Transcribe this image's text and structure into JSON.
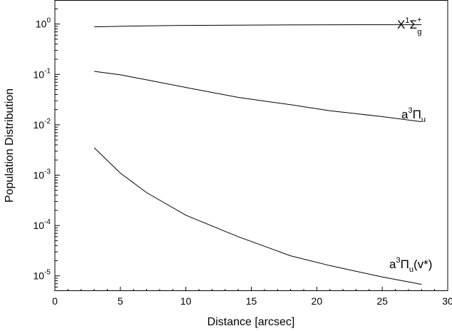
{
  "chart_data": {
    "type": "line",
    "xlabel": "Distance [arcsec]",
    "ylabel": "Population Distribution",
    "xlim": [
      0,
      30
    ],
    "ylim": [
      5e-06,
      3.0
    ],
    "yscale": "log",
    "grid": false,
    "x_ticks": [
      {
        "value": 0,
        "label": "0"
      },
      {
        "value": 5,
        "label": "5"
      },
      {
        "value": 10,
        "label": "10"
      },
      {
        "value": 15,
        "label": "15"
      },
      {
        "value": 20,
        "label": "20"
      },
      {
        "value": 25,
        "label": "25"
      },
      {
        "value": 30,
        "label": "30"
      }
    ],
    "y_ticks": [
      {
        "value": 1.0,
        "mant": "10",
        "exp": "0"
      },
      {
        "value": 0.1,
        "mant": "10",
        "exp": "-1"
      },
      {
        "value": 0.01,
        "mant": "10",
        "exp": "-2"
      },
      {
        "value": 0.001,
        "mant": "10",
        "exp": "-3"
      },
      {
        "value": 0.0001,
        "mant": "10",
        "exp": "-4"
      },
      {
        "value": 1e-05,
        "mant": "10",
        "exp": "-5"
      }
    ],
    "series": [
      {
        "key": "ground",
        "x": [
          3,
          5,
          7,
          10,
          14,
          18,
          21,
          25,
          28
        ],
        "values": [
          0.88,
          0.9,
          0.92,
          0.94,
          0.95,
          0.96,
          0.965,
          0.97,
          0.97
        ]
      },
      {
        "key": "a3pi",
        "x": [
          3,
          5,
          7,
          10,
          14,
          18,
          21,
          25,
          28
        ],
        "values": [
          0.115,
          0.098,
          0.078,
          0.055,
          0.035,
          0.025,
          0.019,
          0.0145,
          0.0115
        ]
      },
      {
        "key": "a3pi_vstar",
        "x": [
          3,
          5,
          7,
          10,
          14,
          18,
          21,
          25,
          28
        ],
        "values": [
          0.0035,
          0.0011,
          0.00045,
          0.00016,
          6e-05,
          2.5e-05,
          1.6e-05,
          9.5e-06,
          6.8e-06
        ]
      }
    ],
    "series_labels": {
      "ground": {
        "base": "X",
        "sup1": "1",
        "greek": "Σ",
        "sup2": "+",
        "sub": "g"
      },
      "a3pi": {
        "base": "a",
        "sup": "3",
        "greek": "Π",
        "sub": "u"
      },
      "a3pi_vstar": {
        "base": "a",
        "sup": "3",
        "greek": "Π",
        "sub": "u",
        "suffix": "(v*)"
      }
    }
  }
}
